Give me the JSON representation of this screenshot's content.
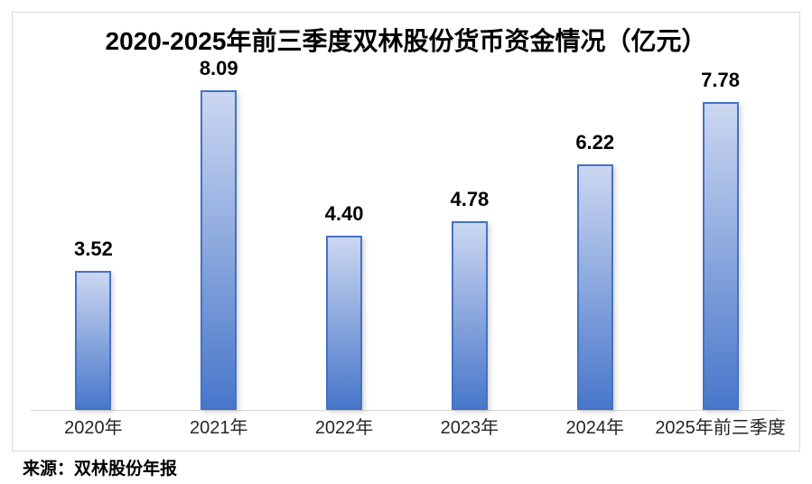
{
  "title": "2020-2025年前三季度双林股份货币资金情况（亿元）",
  "source": "来源：双林股份年报",
  "chart_data": {
    "type": "bar",
    "title": "2020-2025年前三季度双林股份货币资金情况（亿元）",
    "categories": [
      "2020年",
      "2021年",
      "2022年",
      "2023年",
      "2024年",
      "2025年前三季度"
    ],
    "values": [
      3.52,
      8.09,
      4.4,
      4.78,
      6.22,
      7.78
    ],
    "value_labels": [
      "3.52",
      "8.09",
      "4.40",
      "4.78",
      "6.22",
      "7.78"
    ],
    "xlabel": "",
    "ylabel": "",
    "ylim": [
      0,
      9.2
    ],
    "grid": false,
    "legend": "none",
    "source_note": "来源：双林股份年报",
    "colors": {
      "bar_gradient_top": "#ccd7f1",
      "bar_gradient_bottom": "#4877ca",
      "bar_border": "#4472c4",
      "axis_line": "#d9d9d9",
      "frame_border": "#d9d9d9",
      "value_label_text": "#000000",
      "category_text": "#262626",
      "background": "#ffffff"
    }
  }
}
